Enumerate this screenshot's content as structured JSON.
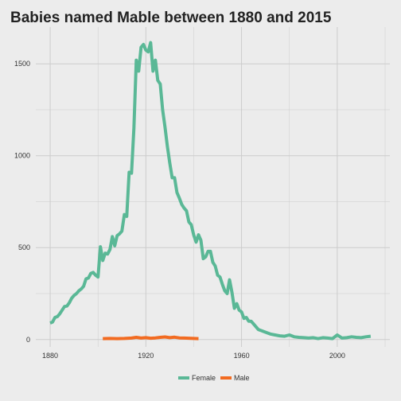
{
  "chart_data": {
    "type": "line",
    "title": "Babies named Mable between 1880 and 2015",
    "xlabel": "",
    "ylabel": "",
    "xlim": [
      1874,
      2022
    ],
    "ylim": [
      -40,
      1700
    ],
    "x_ticks": [
      1880,
      1920,
      1960,
      2000
    ],
    "y_ticks": [
      0,
      500,
      1000,
      1500
    ],
    "grid": true,
    "legend_position": "bottom",
    "colors": {
      "Female": "#5ab896",
      "Male": "#f26b21",
      "background": "#ececec",
      "grid": "#cccccc"
    },
    "series": [
      {
        "name": "Female",
        "x": [
          1880,
          1881,
          1882,
          1883,
          1884,
          1885,
          1886,
          1887,
          1888,
          1889,
          1890,
          1891,
          1892,
          1893,
          1894,
          1895,
          1896,
          1897,
          1898,
          1899,
          1900,
          1901,
          1902,
          1903,
          1904,
          1905,
          1906,
          1907,
          1908,
          1909,
          1910,
          1911,
          1912,
          1913,
          1914,
          1915,
          1916,
          1917,
          1918,
          1919,
          1920,
          1921,
          1922,
          1923,
          1924,
          1925,
          1926,
          1927,
          1928,
          1929,
          1930,
          1931,
          1932,
          1933,
          1934,
          1935,
          1936,
          1937,
          1938,
          1939,
          1940,
          1941,
          1942,
          1943,
          1944,
          1945,
          1946,
          1947,
          1948,
          1949,
          1950,
          1951,
          1952,
          1953,
          1954,
          1955,
          1956,
          1957,
          1958,
          1959,
          1960,
          1961,
          1962,
          1963,
          1964,
          1965,
          1966,
          1967,
          1968,
          1969,
          1970,
          1972,
          1974,
          1976,
          1978,
          1980,
          1982,
          1984,
          1986,
          1988,
          1990,
          1992,
          1994,
          1996,
          1998,
          2000,
          2002,
          2004,
          2006,
          2008,
          2010,
          2012,
          2014
        ],
        "values": [
          90,
          95,
          120,
          125,
          140,
          160,
          180,
          182,
          200,
          225,
          240,
          250,
          265,
          275,
          290,
          330,
          335,
          360,
          365,
          350,
          340,
          505,
          430,
          470,
          465,
          490,
          560,
          510,
          565,
          575,
          590,
          680,
          670,
          910,
          905,
          1150,
          1520,
          1460,
          1590,
          1605,
          1575,
          1565,
          1615,
          1460,
          1520,
          1410,
          1390,
          1250,
          1155,
          1050,
          960,
          880,
          880,
          800,
          770,
          735,
          715,
          700,
          640,
          625,
          570,
          530,
          570,
          540,
          440,
          450,
          480,
          480,
          420,
          400,
          350,
          340,
          300,
          265,
          250,
          325,
          255,
          170,
          195,
          160,
          150,
          115,
          120,
          100,
          100,
          85,
          70,
          55,
          50,
          45,
          40,
          30,
          25,
          20,
          18,
          25,
          15,
          12,
          10,
          8,
          10,
          5,
          10,
          8,
          5,
          25,
          8,
          10,
          15,
          12,
          10,
          15,
          18
        ]
      },
      {
        "name": "Male",
        "x": [
          1902,
          1905,
          1908,
          1911,
          1914,
          1916,
          1918,
          1920,
          1922,
          1924,
          1926,
          1928,
          1930,
          1932,
          1934,
          1936,
          1938,
          1940,
          1942
        ],
        "values": [
          5,
          6,
          5,
          6,
          8,
          12,
          8,
          10,
          7,
          9,
          12,
          14,
          10,
          13,
          9,
          8,
          7,
          6,
          5
        ]
      }
    ]
  }
}
